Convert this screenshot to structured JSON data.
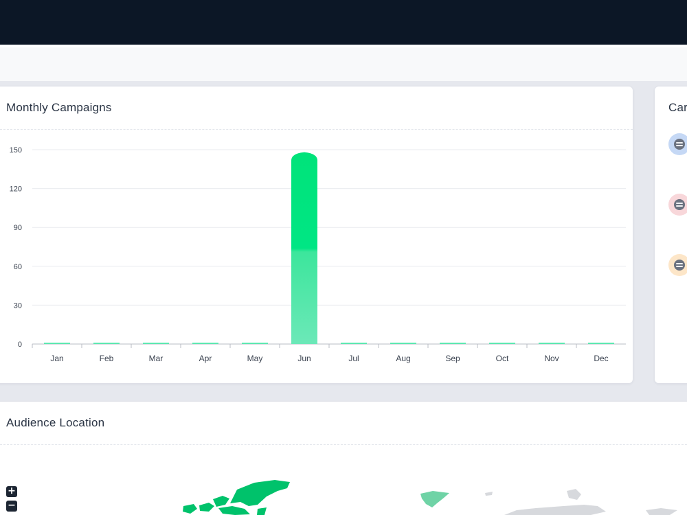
{
  "campaigns_card": {
    "title": "Monthly Campaigns"
  },
  "side_card": {
    "title": "Car"
  },
  "location_card": {
    "title": "Audience Location",
    "zoom_in": "+",
    "zoom_out": "−"
  },
  "side_icons": [
    {
      "icon": "spotify-icon",
      "bg": "#c5d8f5"
    },
    {
      "icon": "spotify-icon",
      "bg": "#f8d7da"
    },
    {
      "icon": "spotify-icon",
      "bg": "#fde6c8"
    }
  ],
  "colors": {
    "topbar": "#0c1726",
    "bar_top": "#00e37a",
    "bar_bottom": "#5de8b0",
    "map_highlight": "#00c26b",
    "map_light": "#6fd3a6",
    "map_gray": "#d7d9dd"
  },
  "chart_data": {
    "type": "bar",
    "categories": [
      "Jan",
      "Feb",
      "Mar",
      "Apr",
      "May",
      "Jun",
      "Jul",
      "Aug",
      "Sep",
      "Oct",
      "Nov",
      "Dec"
    ],
    "values": [
      0,
      0,
      0,
      0,
      0,
      147,
      0,
      0,
      0,
      0,
      0,
      0
    ],
    "yticks": [
      "0",
      "30",
      "60",
      "90",
      "120",
      "150"
    ],
    "ylim": [
      0,
      150
    ],
    "grid": true,
    "legend": "none"
  }
}
